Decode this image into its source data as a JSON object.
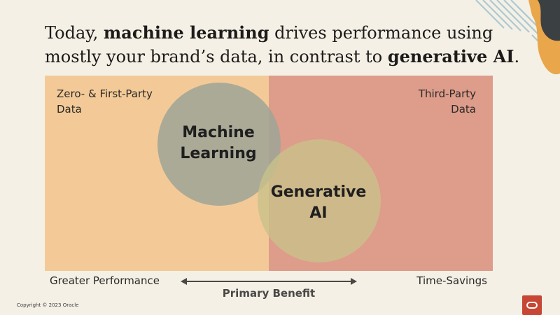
{
  "title": {
    "part1": "Today, ",
    "bold1": "machine learning",
    "part2": " drives performance using mostly your brand’s data, in contrast to ",
    "bold2": "generative AI",
    "part3": "."
  },
  "corners": {
    "left_line1": "Zero- & First-Party",
    "left_line2": "Data",
    "right_line1": "Third-Party",
    "right_line2": "Data"
  },
  "circles": {
    "ml_line1": "Machine",
    "ml_line2": "Learning",
    "gai_line1": "Generative",
    "gai_line2": "AI"
  },
  "axis": {
    "left": "Greater Performance",
    "right": "Time-Savings",
    "center": "Primary Benefit"
  },
  "footer": {
    "copyright": "Copyright © 2023 Oracle"
  },
  "colors": {
    "left_panel": "#f3ca97",
    "right_panel": "#de9c8b",
    "ml_circle": "#9ea497",
    "gai_circle": "#c9c08a",
    "logo": "#c74634"
  },
  "icons": {
    "logo": "oracle-logo-icon",
    "arrow": "double-arrow-icon"
  }
}
